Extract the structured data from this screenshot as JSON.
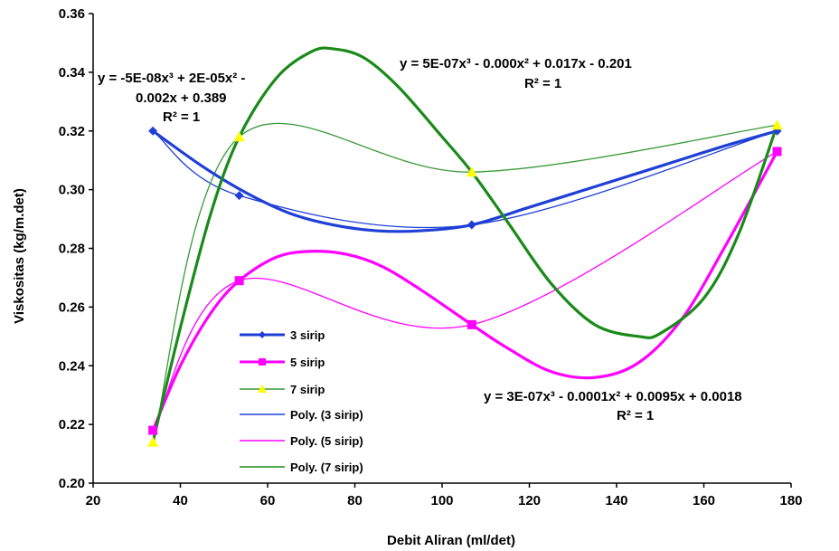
{
  "chart_data": {
    "type": "scatter",
    "xlabel": "Debit Aliran (ml/det)",
    "ylabel": "Viskositas (kg/m.det)",
    "xlim": [
      20,
      180
    ],
    "ylim": [
      0.2,
      0.36
    ],
    "x_ticks": [
      "20",
      "40",
      "60",
      "80",
      "100",
      "120",
      "140",
      "160",
      "180"
    ],
    "y_ticks": [
      "0.20",
      "0.22",
      "0.24",
      "0.26",
      "0.28",
      "0.30",
      "0.32",
      "0.34",
      "0.36"
    ],
    "grid": false,
    "legend_position": "bottom-left",
    "series": [
      {
        "name": "3 sirip",
        "color": "#1f3fd6",
        "marker": "diamond",
        "x": [
          33.7,
          53.5,
          106.8,
          176.8
        ],
        "y": [
          0.32,
          0.298,
          0.288,
          0.32
        ]
      },
      {
        "name": "5 sirip",
        "color": "#ff00ff",
        "marker": "square",
        "x": [
          33.7,
          53.5,
          106.8,
          176.8
        ],
        "y": [
          0.218,
          0.269,
          0.254,
          0.313
        ]
      },
      {
        "name": "7 sirip",
        "color": "#ffff00",
        "marker": "triangle",
        "x": [
          33.7,
          53.5,
          106.8,
          176.8
        ],
        "y": [
          0.214,
          0.318,
          0.306,
          0.322
        ]
      }
    ],
    "trendlines": [
      {
        "name": "Poly. (3 sirip)",
        "color": "#1f3fd6"
      },
      {
        "name": "Poly. (5 sirip)",
        "color": "#ff00ff"
      },
      {
        "name": "Poly. (7 sirip)",
        "color": "#1a8a1a"
      }
    ],
    "overlay_curves": [
      {
        "series": "3 sirip",
        "color": "#1f3fd6",
        "x": [
          33.7,
          45,
          55,
          65,
          75,
          85,
          95,
          106.8,
          120,
          135,
          150,
          165,
          176.8
        ],
        "y": [
          0.32,
          0.308,
          0.299,
          0.292,
          0.288,
          0.286,
          0.286,
          0.288,
          0.294,
          0.301,
          0.308,
          0.315,
          0.32
        ]
      },
      {
        "series": "5 sirip",
        "color": "#ff00ff",
        "x": [
          33.7,
          40,
          47,
          53.5,
          62,
          70,
          78,
          86,
          95,
          106.8,
          115,
          125,
          135,
          145,
          155,
          165,
          176.8
        ],
        "y": [
          0.218,
          0.24,
          0.258,
          0.269,
          0.277,
          0.279,
          0.278,
          0.274,
          0.266,
          0.254,
          0.246,
          0.238,
          0.236,
          0.241,
          0.256,
          0.281,
          0.313
        ]
      },
      {
        "series": "7 sirip",
        "color": "#1a8a1a",
        "x": [
          33.7,
          40,
          47,
          53.5,
          62,
          70,
          75,
          82,
          90,
          100,
          106.8,
          115,
          125,
          135,
          145,
          150,
          160,
          168,
          176.8
        ],
        "y": [
          0.214,
          0.253,
          0.292,
          0.318,
          0.338,
          0.347,
          0.348,
          0.345,
          0.335,
          0.318,
          0.306,
          0.289,
          0.268,
          0.254,
          0.25,
          0.251,
          0.263,
          0.285,
          0.322
        ]
      }
    ],
    "annotations": [
      {
        "lines": [
          "y = -5E-08x³ + 2E-05x² -",
          "0.002x + 0.389",
          "R² = 1"
        ]
      },
      {
        "lines": [
          "y = 5E-07x³ - 0.000x² + 0.017x - 0.201",
          "R² = 1"
        ]
      },
      {
        "lines": [
          "y = 3E-07x³ - 0.0001x² + 0.0095x + 0.0018",
          "R² = 1"
        ]
      }
    ]
  }
}
